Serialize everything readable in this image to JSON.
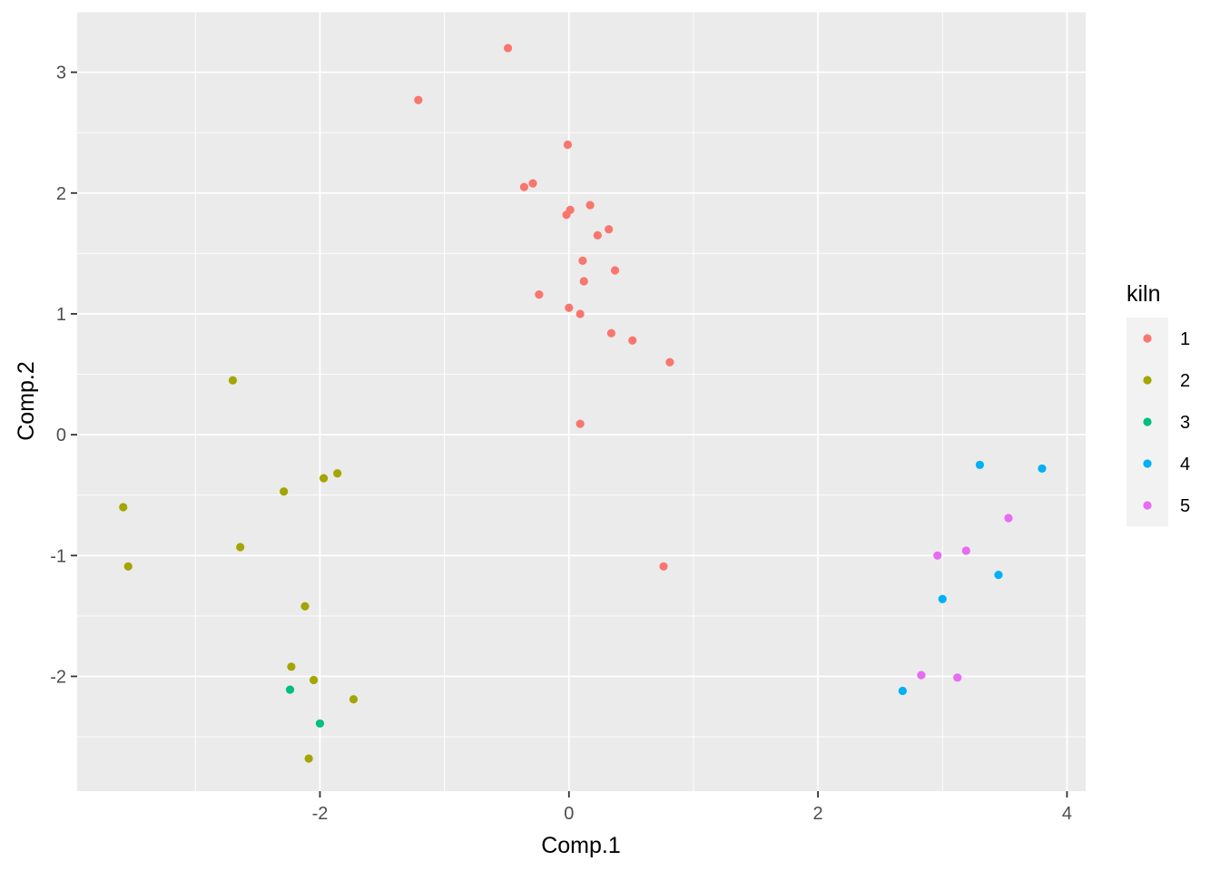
{
  "chart_data": {
    "type": "scatter",
    "title": "",
    "xlabel": "Comp.1",
    "ylabel": "Comp.2",
    "xlim": [
      -3.95,
      4.15
    ],
    "ylim": [
      -2.95,
      3.5
    ],
    "x_ticks": [
      -2,
      0,
      2,
      4
    ],
    "y_ticks": [
      -2,
      -1,
      0,
      1,
      2,
      3
    ],
    "x_tick_labels": [
      "-2",
      "0",
      "2",
      "4"
    ],
    "y_tick_labels": [
      "-2",
      "-1",
      "0",
      "1",
      "2",
      "3"
    ],
    "grid": true,
    "legend": {
      "title": "kiln",
      "placement": "right"
    },
    "series": [
      {
        "name": "1",
        "color": "#F8766D",
        "points": [
          [
            -0.49,
            3.2
          ],
          [
            -1.21,
            2.77
          ],
          [
            -0.01,
            2.4
          ],
          [
            -0.29,
            2.08
          ],
          [
            -0.36,
            2.05
          ],
          [
            0.17,
            1.9
          ],
          [
            0.01,
            1.86
          ],
          [
            -0.02,
            1.82
          ],
          [
            0.32,
            1.7
          ],
          [
            0.23,
            1.65
          ],
          [
            0.11,
            1.44
          ],
          [
            0.37,
            1.36
          ],
          [
            0.12,
            1.27
          ],
          [
            -0.24,
            1.16
          ],
          [
            0.0,
            1.05
          ],
          [
            0.09,
            1.0
          ],
          [
            0.34,
            0.84
          ],
          [
            0.51,
            0.78
          ],
          [
            0.81,
            0.6
          ],
          [
            0.09,
            0.09
          ],
          [
            0.76,
            -1.09
          ]
        ]
      },
      {
        "name": "2",
        "color": "#A3A500",
        "points": [
          [
            -2.7,
            0.45
          ],
          [
            -3.58,
            -0.6
          ],
          [
            -3.54,
            -1.09
          ],
          [
            -2.29,
            -0.47
          ],
          [
            -1.97,
            -0.36
          ],
          [
            -1.86,
            -0.32
          ],
          [
            -2.64,
            -0.93
          ],
          [
            -2.12,
            -1.42
          ],
          [
            -2.23,
            -1.92
          ],
          [
            -2.05,
            -2.03
          ],
          [
            -1.73,
            -2.19
          ],
          [
            -2.09,
            -2.68
          ]
        ]
      },
      {
        "name": "3",
        "color": "#00BF7D",
        "points": [
          [
            -2.24,
            -2.11
          ],
          [
            -2.0,
            -2.39
          ]
        ]
      },
      {
        "name": "4",
        "color": "#00B0F6",
        "points": [
          [
            3.3,
            -0.25
          ],
          [
            3.8,
            -0.28
          ],
          [
            3.45,
            -1.16
          ],
          [
            3.0,
            -1.36
          ],
          [
            2.68,
            -2.12
          ]
        ]
      },
      {
        "name": "5",
        "color": "#E76BF3",
        "points": [
          [
            3.53,
            -0.69
          ],
          [
            3.19,
            -0.96
          ],
          [
            2.96,
            -1.0
          ],
          [
            2.83,
            -1.99
          ],
          [
            3.12,
            -2.01
          ]
        ]
      }
    ]
  }
}
